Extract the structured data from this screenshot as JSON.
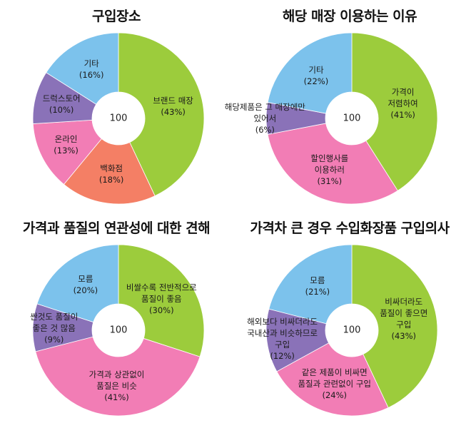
{
  "chart_data": [
    {
      "type": "pie",
      "title": "구입장소",
      "center_label": "100",
      "slices": [
        {
          "label": "브랜드 매장",
          "value": 43,
          "value_text": "(43%)",
          "color": "#9ccc3c"
        },
        {
          "label": "백화점",
          "value": 18,
          "value_text": "(18%)",
          "color": "#f47f65"
        },
        {
          "label": "온라인",
          "value": 13,
          "value_text": "(13%)",
          "color": "#f27db5"
        },
        {
          "label": "드럭스토어",
          "value": 10,
          "value_text": "(10%)",
          "color": "#8a72b8"
        },
        {
          "label": "기타",
          "value": 16,
          "value_text": "(16%)",
          "color": "#7cc2ec"
        }
      ]
    },
    {
      "type": "pie",
      "title": "해당 매장 이용하는 이유",
      "center_label": "100",
      "slices": [
        {
          "label": "가격이 저렴하여",
          "value": 41,
          "value_text": "(41%)",
          "color": "#9ccc3c"
        },
        {
          "label": "할인행사를 이용하러",
          "value": 31,
          "value_text": "(31%)",
          "color": "#f27db5"
        },
        {
          "label": "해당제품은 그 매장에만 있어서",
          "value": 6,
          "value_text": "(6%)",
          "color": "#8a72b8"
        },
        {
          "label": "기타",
          "value": 22,
          "value_text": "(22%)",
          "color": "#7cc2ec"
        }
      ]
    },
    {
      "type": "pie",
      "title": "가격과 품질의 연관성에 대한 견해",
      "center_label": "100",
      "slices": [
        {
          "label": "비쌀수록 전반적으로 품질이 좋음",
          "value": 30,
          "value_text": "(30%)",
          "color": "#9ccc3c"
        },
        {
          "label": "가격과 상관없이 품질은 비슷",
          "value": 41,
          "value_text": "(41%)",
          "color": "#f27db5"
        },
        {
          "label": "싼것도 품질이 좋은 것 많음",
          "value": 9,
          "value_text": "(9%)",
          "color": "#8a72b8"
        },
        {
          "label": "모름",
          "value": 20,
          "value_text": "(20%)",
          "color": "#7cc2ec"
        }
      ]
    },
    {
      "type": "pie",
      "title": "가격차 큰 경우 수입화장품 구입의사",
      "center_label": "100",
      "slices": [
        {
          "label": "비싸더라도 품질이 좋으면 구입",
          "value": 43,
          "value_text": "(43%)",
          "color": "#9ccc3c"
        },
        {
          "label": "같은 제품이 비싸면 품질과 관련없이 구입",
          "value": 24,
          "value_text": "(24%)",
          "color": "#f27db5"
        },
        {
          "label": "해외보다 비싸더라도 국내산과 비슷하므로 구입",
          "value": 12,
          "value_text": "(12%)",
          "color": "#8a72b8"
        },
        {
          "label": "모름",
          "value": 21,
          "value_text": "(21%)",
          "color": "#7cc2ec"
        }
      ]
    }
  ]
}
